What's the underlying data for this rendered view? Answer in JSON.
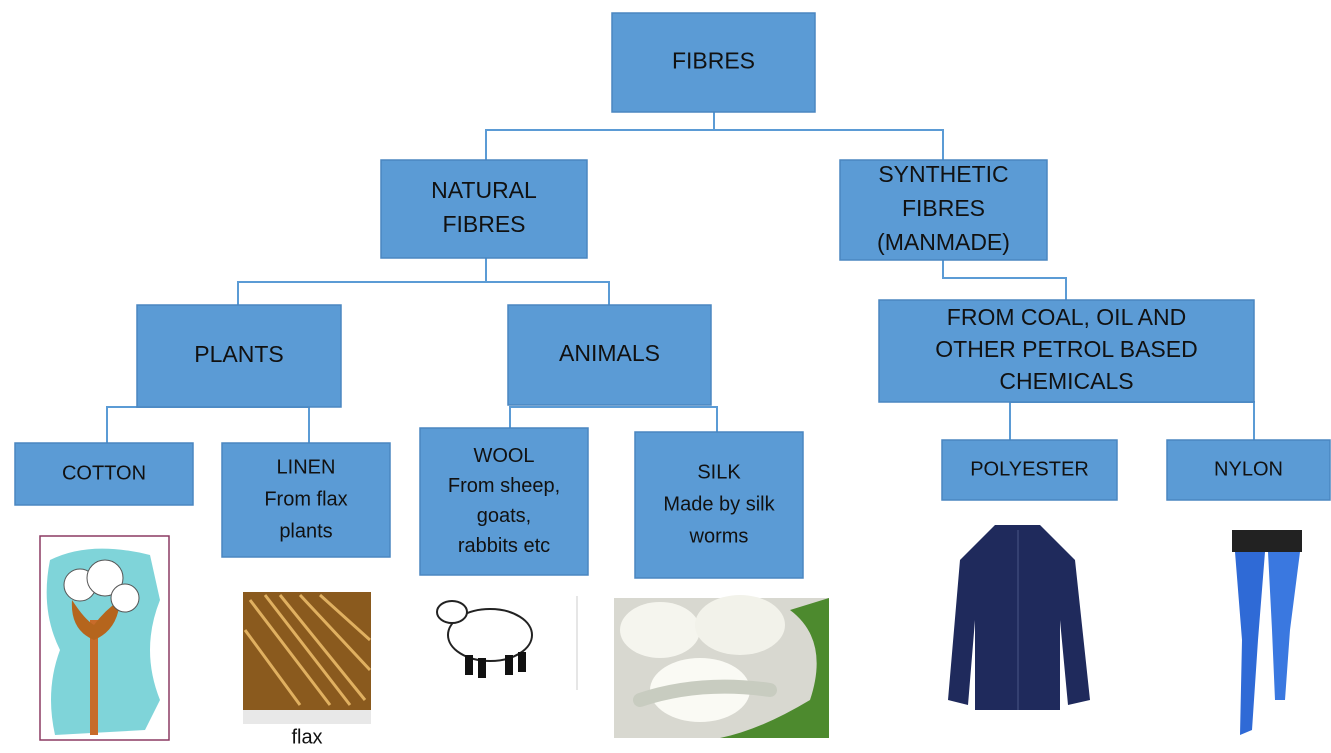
{
  "nodes": [
    {
      "lines": [
        "FIBRES"
      ]
    },
    {
      "lines": [
        "NATURAL",
        "FIBRES"
      ]
    },
    {
      "lines": [
        "SYNTHETIC",
        "FIBRES",
        "(MANMADE)"
      ]
    },
    {
      "lines": [
        "PLANTS"
      ]
    },
    {
      "lines": [
        "ANIMALS"
      ]
    },
    {
      "lines": [
        "FROM COAL, OIL AND",
        "OTHER PETROL BASED",
        "CHEMICALS"
      ]
    },
    {
      "lines": [
        "COTTON"
      ]
    },
    {
      "lines": [
        "LINEN",
        "From flax",
        "plants"
      ]
    },
    {
      "lines": [
        "WOOL",
        "From sheep,",
        "goats,",
        "rabbits etc"
      ]
    },
    {
      "lines": [
        "SILK",
        "Made by silk",
        "worms"
      ]
    },
    {
      "lines": [
        "POLYESTER"
      ]
    },
    {
      "lines": [
        "NYLON"
      ]
    }
  ],
  "image_caption": "flax"
}
